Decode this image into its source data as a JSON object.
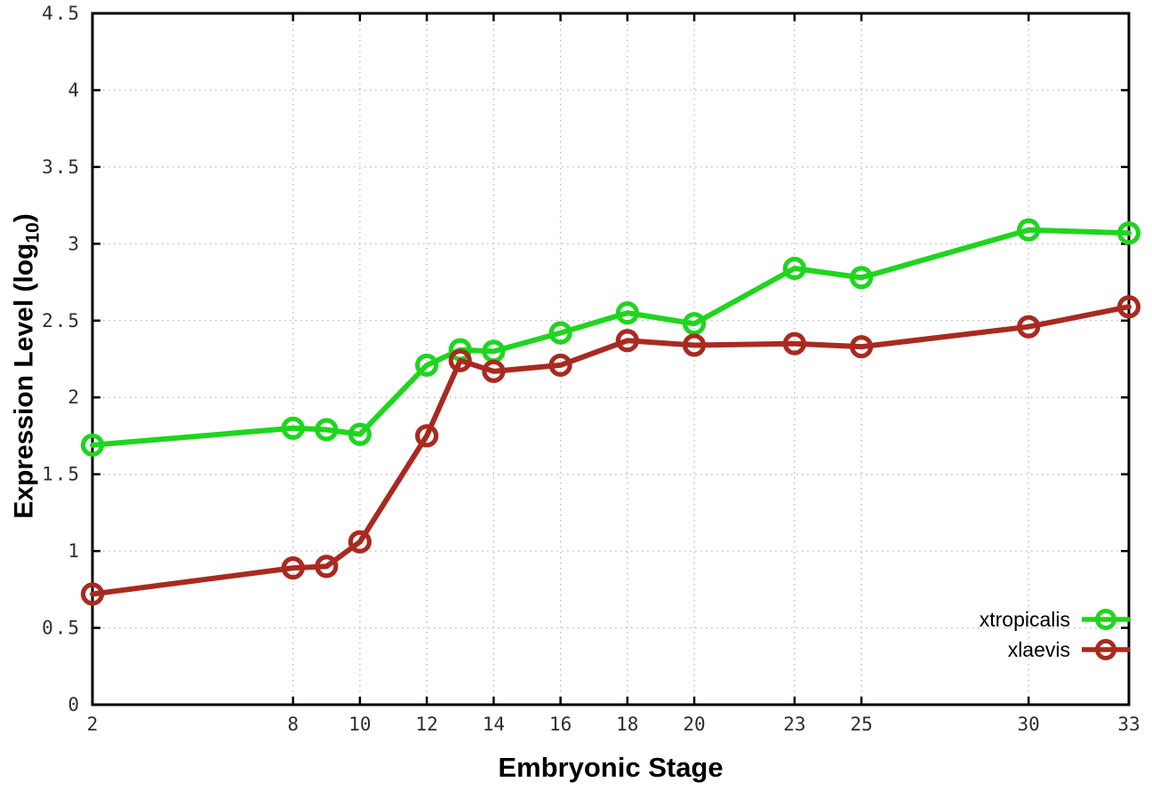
{
  "figure": {
    "background": "#ffffff",
    "border_color": "#000000",
    "grid_color": "#b8b8b8",
    "tick_color": "#000000",
    "tick_label_color": "#2e2e2e",
    "axis_title_color": "#000000"
  },
  "axes": {
    "x": {
      "title": "Embryonic Stage",
      "min": 2,
      "max": 33,
      "tick_values": [
        2,
        8,
        10,
        12,
        14,
        16,
        18,
        20,
        23,
        25,
        30,
        33
      ],
      "tick_labels": [
        "2",
        "8",
        "10",
        "12",
        "14",
        "16",
        "18",
        "20",
        "23",
        "25",
        "30",
        "33"
      ]
    },
    "y": {
      "title_pre": "Expression Level (log",
      "title_sub": "10",
      "title_post": ")",
      "min": 0,
      "max": 4.5,
      "tick_values": [
        0,
        0.5,
        1,
        1.5,
        2,
        2.5,
        3,
        3.5,
        4,
        4.5
      ],
      "tick_labels": [
        "0",
        "0.5",
        "1",
        "1.5",
        "2",
        "2.5",
        "3",
        "3.5",
        "4",
        "4.5"
      ]
    }
  },
  "legend": {
    "items": [
      {
        "label": "xtropicalis",
        "color": "#1fd51f"
      },
      {
        "label": "xlaevis",
        "color": "#a82a20"
      }
    ]
  },
  "chart_data": {
    "type": "line",
    "title": "",
    "xlabel": "Embryonic Stage",
    "ylabel": "Expression Level (log10)",
    "x": [
      2,
      8,
      9,
      10,
      12,
      13,
      14,
      16,
      18,
      20,
      23,
      25,
      30,
      33
    ],
    "series": [
      {
        "name": "xtropicalis",
        "color": "#1fd51f",
        "values": [
          1.69,
          1.8,
          1.79,
          1.76,
          2.21,
          2.31,
          2.3,
          2.42,
          2.55,
          2.48,
          2.84,
          2.78,
          3.09,
          3.07
        ]
      },
      {
        "name": "xlaevis",
        "color": "#a82a20",
        "values": [
          0.72,
          0.89,
          0.9,
          1.06,
          1.75,
          2.24,
          2.17,
          2.21,
          2.37,
          2.34,
          2.35,
          2.33,
          2.46,
          2.59
        ]
      }
    ],
    "xlim": [
      2,
      33
    ],
    "ylim": [
      0,
      4.5
    ],
    "grid": true,
    "grid_style": "dotted",
    "legend_position": "inside-bottom-right",
    "marker": "open-circle",
    "line_width": 6,
    "marker_radius": 10.5
  }
}
